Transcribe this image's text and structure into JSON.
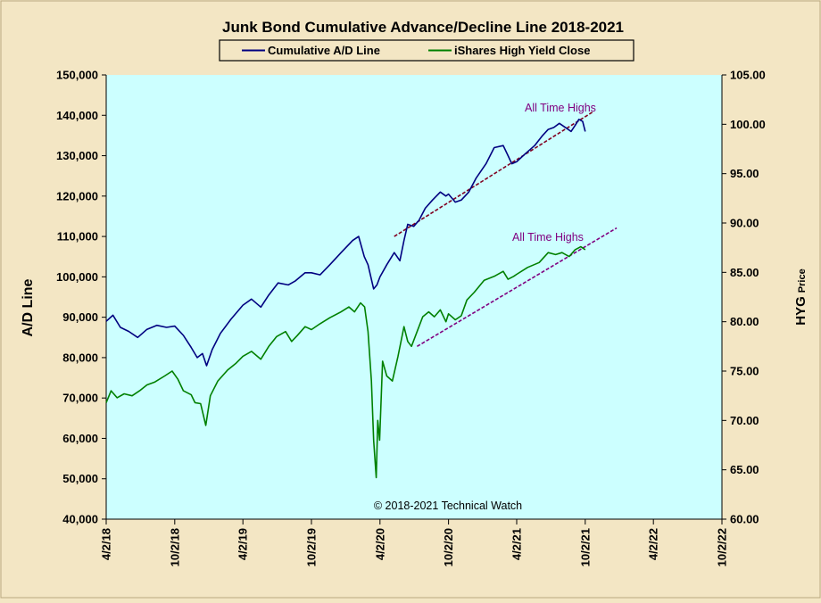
{
  "chart_data": {
    "type": "line",
    "title": "Junk Bond Cumulative Advance/Decline Line 2018-2021",
    "ylabel_left": "A/D Line",
    "ylabel_right_main": "HYG",
    "ylabel_right_small": "Price",
    "copyright": "© 2018-2021 Technical Watch",
    "annotations": [
      "All Time Highs",
      "All Time Highs"
    ],
    "legend_position": "top-center",
    "plot_background": "#ccffff",
    "page_background": "#f3e6c4",
    "x_ticks": [
      "4/2/18",
      "10/2/18",
      "4/2/19",
      "10/2/19",
      "4/2/20",
      "10/2/20",
      "4/2/21",
      "10/2/21",
      "4/2/22",
      "10/2/22"
    ],
    "x_range": [
      "2018-04-02",
      "2022-10-02"
    ],
    "y_left_ticks": [
      "40,000",
      "50,000",
      "60,000",
      "70,000",
      "80,000",
      "90,000",
      "100,000",
      "110,000",
      "120,000",
      "130,000",
      "140,000",
      "150,000"
    ],
    "y_left_range": [
      40000,
      150000
    ],
    "y_right_ticks": [
      "60.00",
      "65.00",
      "70.00",
      "75.00",
      "80.00",
      "85.00",
      "90.00",
      "95.00",
      "100.00",
      "105.00"
    ],
    "y_right_range": [
      60,
      105
    ],
    "series": [
      {
        "name": "Cumulative A/D Line",
        "axis": "left",
        "color": "#000080",
        "points": [
          [
            "2018-04-02",
            89000
          ],
          [
            "2018-04-20",
            90500
          ],
          [
            "2018-05-10",
            87500
          ],
          [
            "2018-06-01",
            86500
          ],
          [
            "2018-06-25",
            85000
          ],
          [
            "2018-07-20",
            87000
          ],
          [
            "2018-08-15",
            88000
          ],
          [
            "2018-09-10",
            87500
          ],
          [
            "2018-10-02",
            87800
          ],
          [
            "2018-10-25",
            85500
          ],
          [
            "2018-11-15",
            82500
          ],
          [
            "2018-12-01",
            80000
          ],
          [
            "2018-12-15",
            81000
          ],
          [
            "2018-12-26",
            78000
          ],
          [
            "2019-01-10",
            82000
          ],
          [
            "2019-02-01",
            86000
          ],
          [
            "2019-03-01",
            89500
          ],
          [
            "2019-04-02",
            93000
          ],
          [
            "2019-04-25",
            94500
          ],
          [
            "2019-05-20",
            92500
          ],
          [
            "2019-06-10",
            95500
          ],
          [
            "2019-07-05",
            98500
          ],
          [
            "2019-08-01",
            98000
          ],
          [
            "2019-08-20",
            99000
          ],
          [
            "2019-09-15",
            101000
          ],
          [
            "2019-10-02",
            101000
          ],
          [
            "2019-10-25",
            100500
          ],
          [
            "2019-11-20",
            103000
          ],
          [
            "2019-12-20",
            106000
          ],
          [
            "2020-01-20",
            109000
          ],
          [
            "2020-02-05",
            110000
          ],
          [
            "2020-02-20",
            105000
          ],
          [
            "2020-03-01",
            103000
          ],
          [
            "2020-03-16",
            97000
          ],
          [
            "2020-03-25",
            98000
          ],
          [
            "2020-04-02",
            100000
          ],
          [
            "2020-04-20",
            103000
          ],
          [
            "2020-05-10",
            106000
          ],
          [
            "2020-05-25",
            104000
          ],
          [
            "2020-06-05",
            109000
          ],
          [
            "2020-06-15",
            113000
          ],
          [
            "2020-07-01",
            112500
          ],
          [
            "2020-07-15",
            114000
          ],
          [
            "2020-08-01",
            117000
          ],
          [
            "2020-08-20",
            119000
          ],
          [
            "2020-09-10",
            121000
          ],
          [
            "2020-09-25",
            120000
          ],
          [
            "2020-10-02",
            120500
          ],
          [
            "2020-10-20",
            118500
          ],
          [
            "2020-11-05",
            119000
          ],
          [
            "2020-11-25",
            121000
          ],
          [
            "2020-12-15",
            124500
          ],
          [
            "2021-01-10",
            128000
          ],
          [
            "2021-02-01",
            132000
          ],
          [
            "2021-02-25",
            132500
          ],
          [
            "2021-03-10",
            130000
          ],
          [
            "2021-03-20",
            128000
          ],
          [
            "2021-04-02",
            128500
          ],
          [
            "2021-04-25",
            130500
          ],
          [
            "2021-05-20",
            132500
          ],
          [
            "2021-06-10",
            135000
          ],
          [
            "2021-06-25",
            136500
          ],
          [
            "2021-07-10",
            137000
          ],
          [
            "2021-07-25",
            138000
          ],
          [
            "2021-08-10",
            137000
          ],
          [
            "2021-08-25",
            136000
          ],
          [
            "2021-09-05",
            137500
          ],
          [
            "2021-09-15",
            139000
          ],
          [
            "2021-09-25",
            138500
          ],
          [
            "2021-10-02",
            136000
          ]
        ]
      },
      {
        "name": "iShares High Yield Close",
        "axis": "right",
        "color": "#008000",
        "points": [
          [
            "2018-04-02",
            71.8
          ],
          [
            "2018-04-15",
            73.0
          ],
          [
            "2018-05-01",
            72.3
          ],
          [
            "2018-05-20",
            72.7
          ],
          [
            "2018-06-10",
            72.5
          ],
          [
            "2018-06-30",
            73.0
          ],
          [
            "2018-07-20",
            73.6
          ],
          [
            "2018-08-10",
            73.9
          ],
          [
            "2018-09-05",
            74.5
          ],
          [
            "2018-09-25",
            75.0
          ],
          [
            "2018-10-10",
            74.2
          ],
          [
            "2018-10-25",
            73.0
          ],
          [
            "2018-11-15",
            72.6
          ],
          [
            "2018-11-25",
            71.8
          ],
          [
            "2018-12-10",
            71.7
          ],
          [
            "2018-12-24",
            69.5
          ],
          [
            "2019-01-05",
            72.5
          ],
          [
            "2019-01-25",
            74.0
          ],
          [
            "2019-02-20",
            75.1
          ],
          [
            "2019-03-15",
            75.8
          ],
          [
            "2019-04-02",
            76.5
          ],
          [
            "2019-04-25",
            77.0
          ],
          [
            "2019-05-20",
            76.2
          ],
          [
            "2019-06-10",
            77.5
          ],
          [
            "2019-07-01",
            78.5
          ],
          [
            "2019-07-25",
            79.0
          ],
          [
            "2019-08-10",
            78.0
          ],
          [
            "2019-08-25",
            78.6
          ],
          [
            "2019-09-15",
            79.5
          ],
          [
            "2019-10-02",
            79.2
          ],
          [
            "2019-10-25",
            79.8
          ],
          [
            "2019-11-20",
            80.4
          ],
          [
            "2019-12-20",
            81.0
          ],
          [
            "2020-01-10",
            81.5
          ],
          [
            "2020-01-25",
            81.0
          ],
          [
            "2020-02-10",
            81.9
          ],
          [
            "2020-02-21",
            81.5
          ],
          [
            "2020-03-01",
            79.0
          ],
          [
            "2020-03-10",
            74.0
          ],
          [
            "2020-03-16",
            68.0
          ],
          [
            "2020-03-23",
            64.2
          ],
          [
            "2020-03-27",
            70.0
          ],
          [
            "2020-04-01",
            68.0
          ],
          [
            "2020-04-09",
            76.0
          ],
          [
            "2020-04-20",
            74.5
          ],
          [
            "2020-05-05",
            74.0
          ],
          [
            "2020-05-20",
            76.5
          ],
          [
            "2020-06-05",
            79.5
          ],
          [
            "2020-06-15",
            78.0
          ],
          [
            "2020-06-25",
            77.5
          ],
          [
            "2020-07-10",
            79.0
          ],
          [
            "2020-07-25",
            80.5
          ],
          [
            "2020-08-10",
            81.0
          ],
          [
            "2020-08-25",
            80.5
          ],
          [
            "2020-09-10",
            81.2
          ],
          [
            "2020-09-25",
            80.0
          ],
          [
            "2020-10-02",
            80.8
          ],
          [
            "2020-10-20",
            80.2
          ],
          [
            "2020-11-05",
            80.6
          ],
          [
            "2020-11-20",
            82.2
          ],
          [
            "2020-12-10",
            83.0
          ],
          [
            "2021-01-05",
            84.2
          ],
          [
            "2021-02-01",
            84.6
          ],
          [
            "2021-02-25",
            85.1
          ],
          [
            "2021-03-10",
            84.3
          ],
          [
            "2021-03-25",
            84.6
          ],
          [
            "2021-04-02",
            84.8
          ],
          [
            "2021-05-01",
            85.5
          ],
          [
            "2021-06-01",
            86.0
          ],
          [
            "2021-06-25",
            87.0
          ],
          [
            "2021-07-15",
            86.8
          ],
          [
            "2021-08-01",
            87.0
          ],
          [
            "2021-08-20",
            86.6
          ],
          [
            "2021-09-05",
            87.3
          ],
          [
            "2021-09-20",
            87.6
          ],
          [
            "2021-10-02",
            87.3
          ]
        ]
      }
    ],
    "trendlines": [
      {
        "axis": "left",
        "color": "#800020",
        "from": [
          "2020-05-10",
          110000
        ],
        "to": [
          "2021-10-25",
          141000
        ]
      },
      {
        "axis": "right",
        "color": "#800080",
        "from": [
          "2020-07-10",
          77.5
        ],
        "to": [
          "2021-12-25",
          89.5
        ]
      }
    ]
  }
}
